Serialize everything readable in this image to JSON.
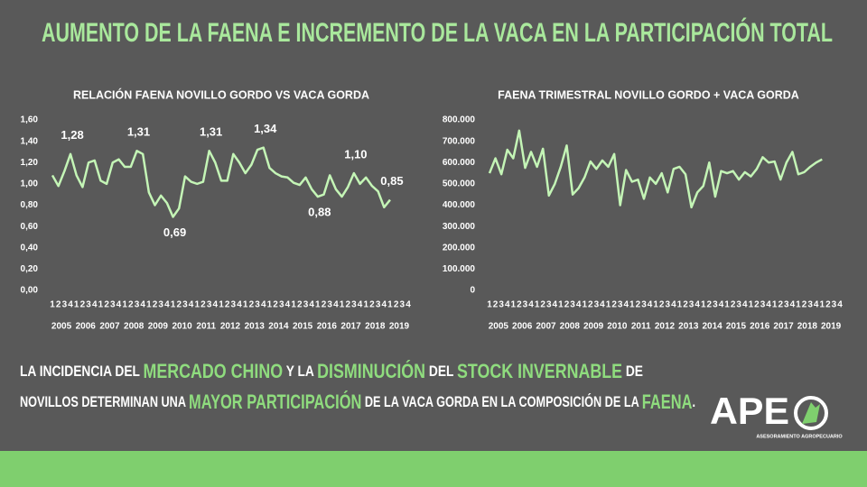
{
  "title": "AUMENTO DE LA FAENA E INCREMENTO DE LA VACA EN LA PARTICIPACIÓN TOTAL",
  "chart_data": [
    {
      "type": "line",
      "title": "RELACIÓN FAENA NOVILLO GORDO VS VACA GORDA",
      "categories": [
        "1",
        "2",
        "3",
        "4",
        "1",
        "2",
        "3",
        "4",
        "1",
        "2",
        "3",
        "4",
        "1",
        "2",
        "3",
        "4",
        "1",
        "2",
        "3",
        "4",
        "1",
        "2",
        "3",
        "4",
        "1",
        "2",
        "3",
        "4",
        "1",
        "2",
        "3",
        "4",
        "1",
        "2",
        "3",
        "4",
        "1",
        "2",
        "3",
        "4",
        "1",
        "2",
        "3",
        "4",
        "1",
        "2",
        "3",
        "4",
        "1",
        "2",
        "3",
        "4",
        "1",
        "2",
        "3",
        "4",
        "1",
        "2",
        "3",
        "4"
      ],
      "years": [
        "2005",
        "2006",
        "2007",
        "2008",
        "2009",
        "2010",
        "2011",
        "2012",
        "2013",
        "2014",
        "2015",
        "2016",
        "2017",
        "2018",
        "2019"
      ],
      "values": [
        1.08,
        0.98,
        1.12,
        1.28,
        1.08,
        0.97,
        1.2,
        1.22,
        1.03,
        1.0,
        1.2,
        1.23,
        1.16,
        1.16,
        1.31,
        1.28,
        0.92,
        0.8,
        0.89,
        0.82,
        0.69,
        0.77,
        1.07,
        1.02,
        1.0,
        1.02,
        1.31,
        1.2,
        1.03,
        1.03,
        1.28,
        1.2,
        1.1,
        1.18,
        1.32,
        1.34,
        1.15,
        1.1,
        1.07,
        1.06,
        1.01,
        0.99,
        1.06,
        0.95,
        0.88,
        0.9,
        1.08,
        0.95,
        0.88,
        0.97,
        1.1,
        1.0,
        1.06,
        0.98,
        0.93,
        0.78,
        0.85,
        null,
        null,
        null
      ],
      "value_labels": [
        null,
        null,
        null,
        "1,28",
        null,
        null,
        null,
        null,
        null,
        null,
        null,
        null,
        null,
        null,
        "1,31",
        null,
        null,
        null,
        null,
        null,
        "0,69",
        null,
        null,
        null,
        null,
        null,
        "1,31",
        null,
        null,
        null,
        null,
        null,
        null,
        null,
        null,
        "1,34",
        null,
        null,
        null,
        null,
        null,
        null,
        null,
        null,
        "0,88",
        null,
        null,
        null,
        null,
        null,
        "1,10",
        null,
        null,
        null,
        null,
        null,
        "0,85",
        null,
        null,
        null
      ],
      "color": "#c4f5b6",
      "ylim": [
        0,
        1.6
      ],
      "yticks": [
        {
          "value": 0,
          "label": "0,00"
        },
        {
          "value": 0.2,
          "label": "0,20"
        },
        {
          "value": 0.4,
          "label": "0,40"
        },
        {
          "value": 0.6,
          "label": "0,60"
        },
        {
          "value": 0.8,
          "label": "0,80"
        },
        {
          "value": 1.0,
          "label": "1,00"
        },
        {
          "value": 1.2,
          "label": "1,20"
        },
        {
          "value": 1.4,
          "label": "1,40"
        },
        {
          "value": 1.6,
          "label": "1,60"
        }
      ]
    },
    {
      "type": "line",
      "title": "FAENA TRIMESTRAL NOVILLO GORDO + VACA GORDA",
      "categories": [
        "1",
        "2",
        "3",
        "4",
        "1",
        "2",
        "3",
        "4",
        "1",
        "2",
        "3",
        "4",
        "1",
        "2",
        "3",
        "4",
        "1",
        "2",
        "3",
        "4",
        "1",
        "2",
        "3",
        "4",
        "1",
        "2",
        "3",
        "4",
        "1",
        "2",
        "3",
        "4",
        "1",
        "2",
        "3",
        "4",
        "1",
        "2",
        "3",
        "4",
        "1",
        "2",
        "3",
        "4",
        "1",
        "2",
        "3",
        "4",
        "1",
        "2",
        "3",
        "4",
        "1",
        "2",
        "3",
        "4",
        "1",
        "2",
        "3",
        "4"
      ],
      "years": [
        "2005",
        "2006",
        "2007",
        "2008",
        "2009",
        "2010",
        "2011",
        "2012",
        "2013",
        "2014",
        "2015",
        "2016",
        "2017",
        "2018",
        "2019"
      ],
      "values": [
        550000,
        620000,
        545000,
        660000,
        620000,
        750000,
        575000,
        650000,
        580000,
        665000,
        445000,
        500000,
        580000,
        680000,
        450000,
        480000,
        530000,
        605000,
        570000,
        610000,
        580000,
        640000,
        400000,
        565000,
        510000,
        520000,
        430000,
        530000,
        500000,
        550000,
        460000,
        570000,
        580000,
        545000,
        390000,
        460000,
        490000,
        600000,
        440000,
        560000,
        550000,
        560000,
        520000,
        555000,
        535000,
        570000,
        625000,
        600000,
        605000,
        520000,
        600000,
        650000,
        545000,
        555000,
        580000,
        600000,
        615000,
        null,
        null,
        null
      ],
      "color": "#c4f5b6",
      "ylim": [
        0,
        800000
      ],
      "yticks": [
        0,
        {
          "value": 100000,
          "label": "100.000"
        },
        {
          "value": 200000,
          "label": "200.000"
        },
        {
          "value": 300000,
          "label": "300.000"
        },
        {
          "value": 400000,
          "label": "400.000"
        },
        {
          "value": 500000,
          "label": "500.000"
        },
        {
          "value": 600000,
          "label": "600.000"
        },
        {
          "value": 700000,
          "label": "700.000"
        },
        {
          "value": 800000,
          "label": "800.000"
        }
      ]
    }
  ],
  "body": {
    "lines": [
      [
        {
          "text": "LA INCIDENCIA DEL ",
          "highlight": false
        },
        {
          "text": "MERCADO CHINO",
          "highlight": true
        },
        {
          "text": " Y LA ",
          "highlight": false
        },
        {
          "text": "DISMINUCIÓN",
          "highlight": true
        },
        {
          "text": " DEL ",
          "highlight": false
        },
        {
          "text": "STOCK INVERNABLE",
          "highlight": true
        },
        {
          "text": " DE",
          "highlight": false
        }
      ],
      [
        {
          "text": "NOVILLOS DETERMINAN UNA ",
          "highlight": false
        },
        {
          "text": "MAYOR PARTICIPACIÓN",
          "highlight": true
        },
        {
          "text": " DE LA VACA GORDA EN LA COMPOSICIÓN DE LA ",
          "highlight": false
        },
        {
          "text": "FAENA",
          "highlight": true
        },
        {
          "text": ".",
          "highlight": false
        }
      ]
    ]
  },
  "logo": {
    "name": "APE",
    "tagline": "ASESORAMIENTO AGROPECUARIO"
  }
}
